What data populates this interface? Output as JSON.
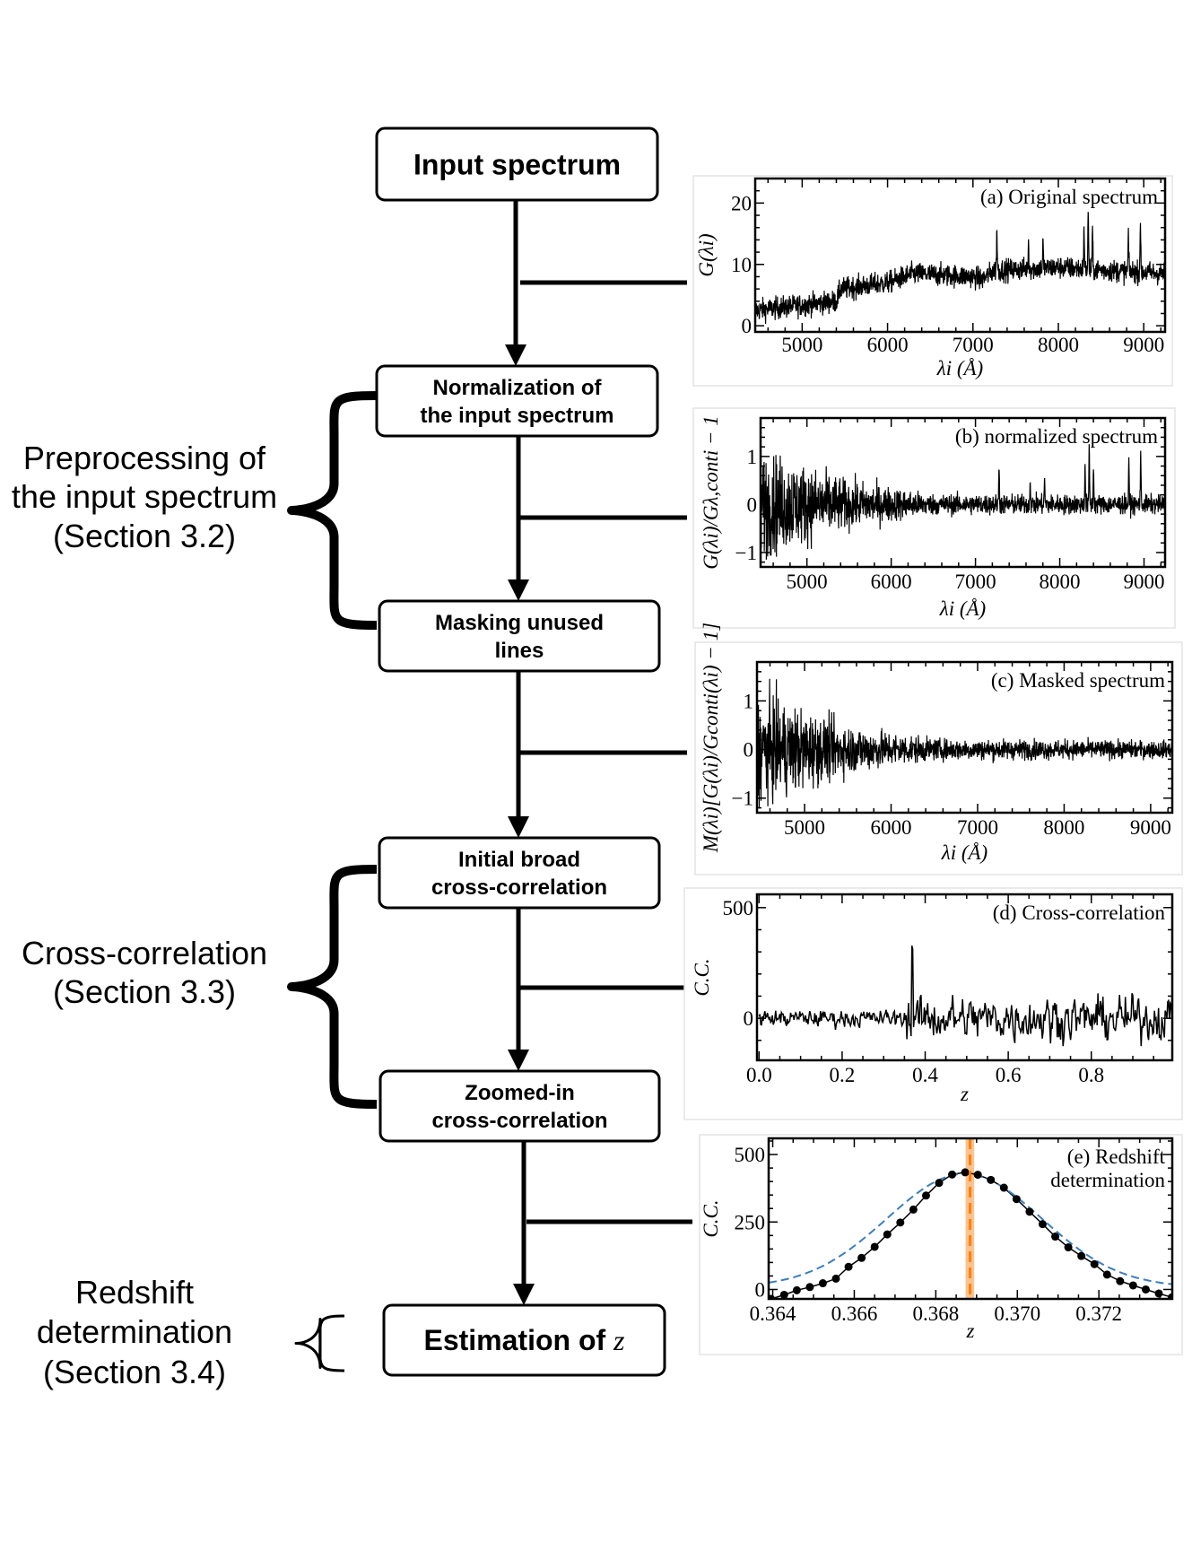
{
  "flow": {
    "steps": [
      {
        "lines": [
          "Input spectrum"
        ]
      },
      {
        "lines": [
          "Normalization of",
          "the input spectrum"
        ]
      },
      {
        "lines": [
          "Masking unused",
          "lines"
        ]
      },
      {
        "lines": [
          "Initial broad",
          "cross-correlation"
        ]
      },
      {
        "lines": [
          "Zoomed-in",
          "cross-correlation"
        ]
      },
      {
        "lines": [
          "Estimation of ",
          "z"
        ]
      }
    ],
    "groups": [
      {
        "lines": [
          "Preprocessing of",
          "the input spectrum",
          "(Section 3.2)"
        ]
      },
      {
        "lines": [
          "Cross-correlation",
          "(Section 3.3)"
        ]
      },
      {
        "lines": [
          "Redshift",
          "determination",
          "(Section 3.4)"
        ]
      }
    ]
  },
  "colors": {
    "line": "#000000",
    "fit": "#3a7ebf",
    "estimate": "#ff7f0e",
    "band": "#ffbb80"
  },
  "chart_data": [
    {
      "type": "line",
      "title": "(a) Original spectrum",
      "xlabel": "λi (Å)",
      "ylabel": "G(λi)",
      "xlim": [
        4450,
        9250
      ],
      "ylim": [
        -1,
        24
      ],
      "xticks": [
        "5000",
        "6000",
        "7000",
        "8000",
        "9000"
      ],
      "yticks": [
        "0",
        "10",
        "20"
      ],
      "continuum": {
        "x": [
          4450,
          5400,
          5450,
          6000,
          6300,
          7000,
          7100,
          7250,
          8000,
          9250
        ],
        "y": [
          2.5,
          4,
          6,
          7,
          8.5,
          8,
          7.5,
          9,
          9.5,
          8.5
        ]
      },
      "emission_lines": {
        "x": [
          7280,
          7650,
          7820,
          8300,
          8350,
          8400,
          8820,
          8960
        ],
        "y": [
          16,
          13.5,
          13.5,
          16.5,
          18.5,
          15.5,
          15.5,
          17.5
        ]
      }
    },
    {
      "type": "line",
      "title": "(b) normalized spectrum",
      "xlabel": "λi (Å)",
      "ylabel": "G(λi)/Gλ,conti − 1",
      "xlim": [
        4450,
        9250
      ],
      "ylim": [
        -1.3,
        1.8
      ],
      "xticks": [
        "5000",
        "6000",
        "7000",
        "8000",
        "9000"
      ],
      "yticks": [
        "−1",
        "0",
        "1"
      ],
      "noise_amplitude": {
        "x": [
          4500,
          5500,
          6500,
          9200
        ],
        "y": [
          1.1,
          0.5,
          0.22,
          0.2
        ]
      },
      "emission_lines": {
        "x": [
          7280,
          7650,
          7820,
          8300,
          8350,
          8400,
          8820,
          8960
        ],
        "y": [
          0.85,
          0.6,
          0.55,
          0.9,
          1.2,
          0.8,
          0.8,
          1.1
        ]
      }
    },
    {
      "type": "line",
      "title": "(c) Masked spectrum",
      "xlabel": "λi (Å)",
      "ylabel": "M(λi)[G(λi)/Gconti(λi) − 1]",
      "xlim": [
        4450,
        9250
      ],
      "ylim": [
        -1.3,
        1.8
      ],
      "xticks": [
        "5000",
        "6000",
        "7000",
        "8000",
        "9000"
      ],
      "yticks": [
        "−1",
        "0",
        "1"
      ],
      "noise_amplitude": {
        "x": [
          4500,
          5500,
          6500,
          9200
        ],
        "y": [
          1.1,
          0.5,
          0.22,
          0.18
        ]
      }
    },
    {
      "type": "line",
      "title": "(d) Cross-correlation",
      "xlabel": "z",
      "ylabel": "C.C.",
      "xlim": [
        -0.005,
        0.995
      ],
      "ylim": [
        -190,
        560
      ],
      "xticks": [
        "0.0",
        "0.2",
        "0.4",
        "0.6",
        "0.8"
      ],
      "yticks": [
        "0",
        "500"
      ],
      "peak": {
        "x": 0.369,
        "y": 430
      }
    },
    {
      "type": "line",
      "title": "(e) Redshift",
      "title2": "determination",
      "xlabel": "z",
      "ylabel": "C.C.",
      "xlim": [
        0.3639,
        0.3738
      ],
      "ylim": [
        -35,
        560
      ],
      "xticks": [
        "0.364",
        "0.366",
        "0.368",
        "0.370",
        "0.372"
      ],
      "yticks": [
        "0",
        "250",
        "500"
      ],
      "points": {
        "x": [
          0.36396,
          0.36428,
          0.36459,
          0.36491,
          0.36523,
          0.36555,
          0.36586,
          0.36618,
          0.3665,
          0.36681,
          0.36713,
          0.36745,
          0.36776,
          0.36808,
          0.3684,
          0.36872,
          0.36903,
          0.36935,
          0.36967,
          0.36998,
          0.3703,
          0.37062,
          0.37093,
          0.37125,
          0.37157,
          0.37189,
          0.3722,
          0.37252,
          0.37284,
          0.37315,
          0.37347,
          0.37379
        ],
        "y": [
          -35,
          -20,
          -3,
          9,
          23,
          40,
          84,
          117,
          158,
          204,
          248,
          296,
          348,
          395,
          426,
          434,
          425,
          406,
          377,
          335,
          288,
          242,
          196,
          156,
          124,
          94,
          55,
          31,
          15,
          0,
          -15,
          -29
        ]
      },
      "gaussian_fit": {
        "amplitude": 420,
        "center": 0.3687,
        "sigma": 0.0019,
        "offset": 8
      },
      "estimate": {
        "z": 0.36884,
        "band": [
          0.36873,
          0.36894
        ]
      }
    }
  ]
}
